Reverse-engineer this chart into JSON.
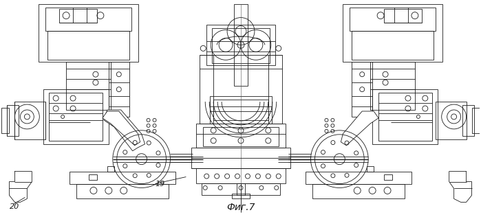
{
  "title": "Фиг.7",
  "title_fontsize": 10,
  "bg_color": "#ffffff",
  "line_color": "#1a1a1a",
  "label_20": "20",
  "label_19": "19",
  "fig_width": 6.99,
  "fig_height": 3.16,
  "dpi": 100
}
